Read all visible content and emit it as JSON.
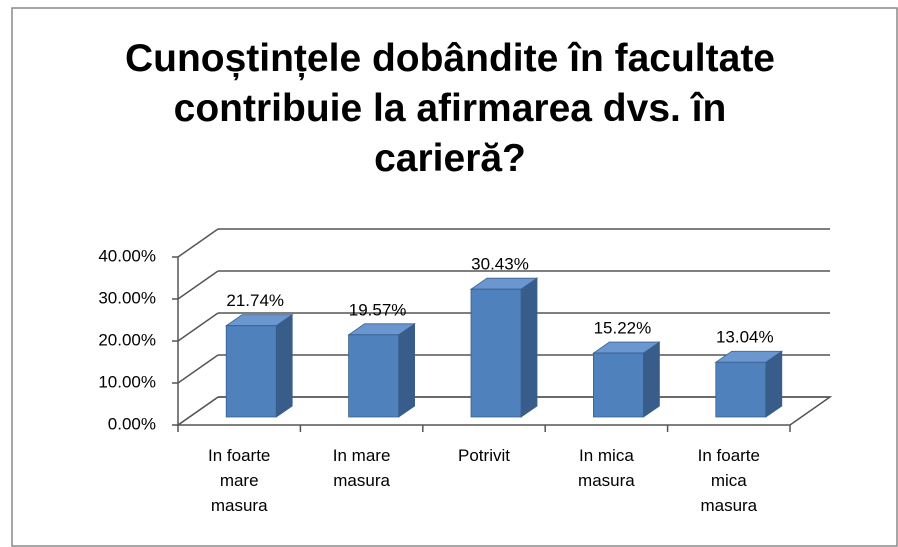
{
  "chart_data": {
    "type": "bar3d",
    "title": "Cunoștințele dobândite în facultate contribuie la afirmarea dvs. în carieră?",
    "categories": [
      "In foarte\nmare\nmasura",
      "In mare\nmasura",
      "Potrivit",
      "In mica\nmasura",
      "In foarte\nmica\nmasura"
    ],
    "values": [
      21.74,
      19.57,
      30.43,
      15.22,
      13.04
    ],
    "value_labels": [
      "21.74%",
      "19.57%",
      "30.43%",
      "15.22%",
      "13.04%"
    ],
    "color": "#4f81bd",
    "ylim": [
      0,
      40
    ],
    "yticks": [
      {
        "value": 0,
        "label": "0.00%"
      },
      {
        "value": 10,
        "label": "10.00%"
      },
      {
        "value": 20,
        "label": "20.00%"
      },
      {
        "value": 30,
        "label": "30.00%"
      },
      {
        "value": 40,
        "label": "40.00%"
      }
    ],
    "grid": true
  }
}
